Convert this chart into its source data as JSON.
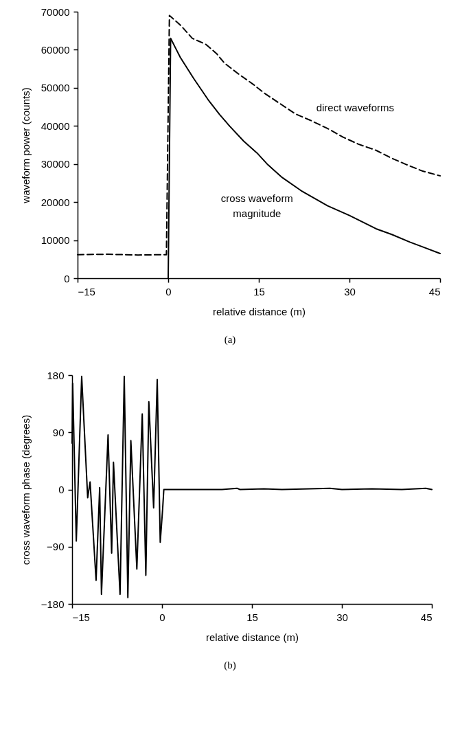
{
  "chart_data": [
    {
      "type": "line",
      "xlabel": "relative distance (m)",
      "ylabel": "waveform power (counts)",
      "xlim": [
        -15,
        45
      ],
      "xticks": [
        -15,
        0,
        15,
        30,
        45
      ],
      "ylim": [
        0,
        70000
      ],
      "yticks": [
        0,
        10000,
        20000,
        30000,
        40000,
        50000,
        60000,
        70000
      ],
      "grid": false,
      "annotations": [
        "(a)"
      ],
      "series": [
        {
          "name": "direct waveforms",
          "color": "#000000",
          "line_style": "dashed",
          "x": [
            -15,
            -10,
            -5,
            -0.3,
            0.2,
            2,
            4,
            6.25,
            8,
            9.3,
            11.5,
            14,
            16,
            18.75,
            21,
            23.5,
            26.4,
            29,
            31.5,
            34.4,
            37,
            39.5,
            42,
            45
          ],
          "values": [
            6200,
            6300,
            6100,
            6200,
            69000,
            66500,
            63000,
            61400,
            59000,
            56500,
            53800,
            51000,
            48500,
            45600,
            43200,
            41500,
            39300,
            37000,
            35200,
            33600,
            31500,
            29800,
            28200,
            26900
          ]
        },
        {
          "name": "cross waveform magnitude",
          "color": "#000000",
          "line_style": "solid",
          "x": [
            0,
            0.4,
            2,
            4.2,
            6.6,
            8.5,
            10.2,
            12.5,
            14.7,
            16.5,
            18.75,
            22,
            26.4,
            30,
            34.4,
            37,
            40,
            42.5,
            45
          ],
          "values": [
            0,
            63000,
            58000,
            52500,
            46900,
            43000,
            39900,
            36000,
            32900,
            29800,
            26600,
            23000,
            19000,
            16500,
            13000,
            11500,
            9500,
            8000,
            6500
          ]
        }
      ]
    },
    {
      "type": "line",
      "xlabel": "relative distance (m)",
      "ylabel": "cross waveform phase (degrees)",
      "xlim": [
        -15,
        45
      ],
      "xticks": [
        -15,
        0,
        15,
        30,
        45
      ],
      "ylim": [
        -180,
        180
      ],
      "yticks": [
        -180,
        -90,
        0,
        90,
        180
      ],
      "grid": false,
      "annotations": [
        "(b)"
      ],
      "series": [
        {
          "color": "#000000",
          "line_style": "solid",
          "x": [
            -15,
            -14.9,
            -14.3,
            -13.4,
            -12.4,
            -12.0,
            -11.0,
            -10.4,
            -10.1,
            -9.0,
            -8.4,
            -8.1,
            -7.0,
            -6.3,
            -5.7,
            -5.2,
            -4.2,
            -3.3,
            -2.7,
            -2.2,
            -1.4,
            -0.8,
            -0.3,
            0.1,
            0.3,
            5,
            10,
            12.5,
            13,
            17,
            20,
            28,
            30,
            35,
            40,
            44,
            45
          ],
          "values": [
            73,
            167,
            -81,
            178,
            -13,
            12,
            -143,
            3,
            -165,
            86,
            -100,
            43,
            -165,
            178,
            -170,
            77,
            -125,
            119,
            -135,
            138,
            -29,
            173,
            -83,
            -31,
            0,
            0,
            0,
            2,
            0,
            1,
            0,
            2,
            0,
            1,
            0,
            2,
            0
          ]
        }
      ]
    }
  ]
}
